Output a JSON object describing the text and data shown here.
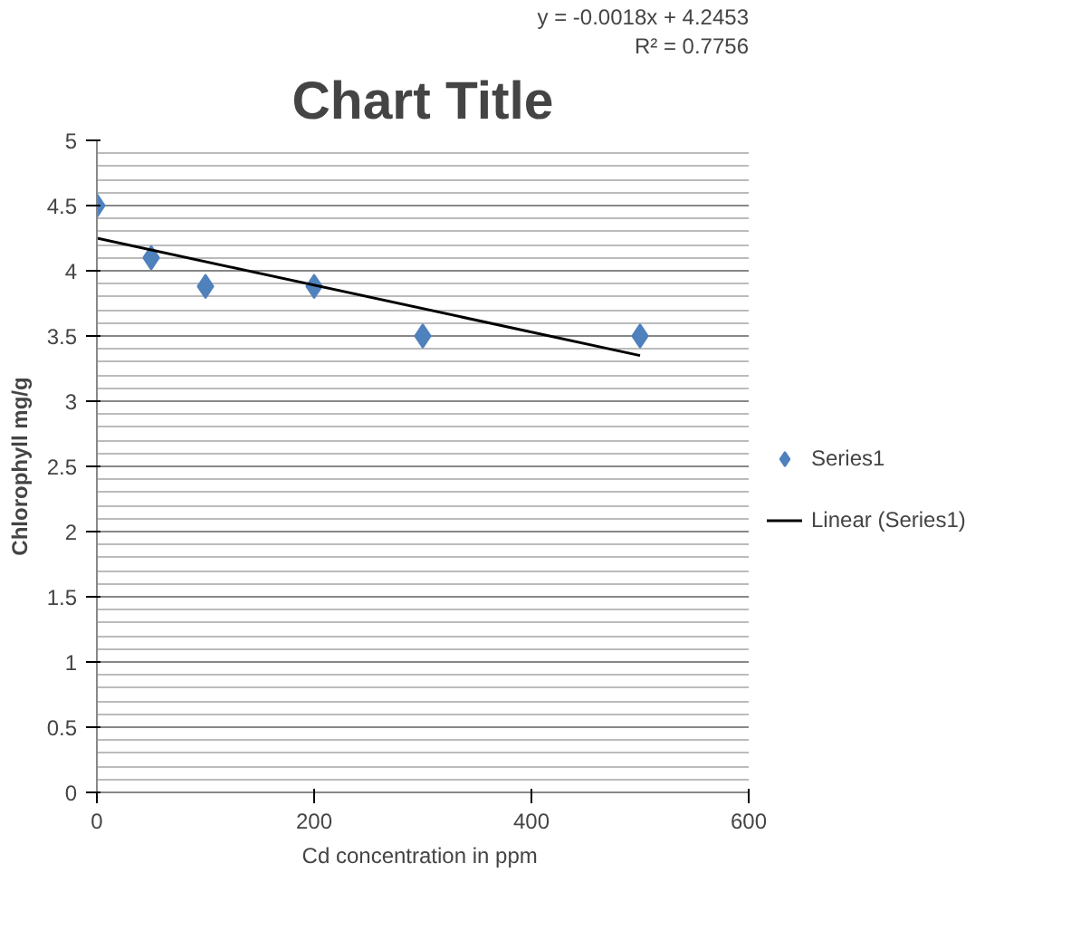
{
  "chart_data": {
    "type": "scatter",
    "title": "Chart Title",
    "xlabel": "Cd concentration  in ppm",
    "ylabel": "Chlorophyll mg/g",
    "annotations": [
      "y = -0.0018x + 4.2453",
      "R² = 0.7756"
    ],
    "series": [
      {
        "name": "Series1",
        "color": "#4f81bd",
        "marker": "diamond",
        "x": [
          0,
          50,
          100,
          200,
          300,
          500
        ],
        "values": [
          4.5,
          4.1,
          3.88,
          3.88,
          3.5,
          3.5
        ]
      },
      {
        "name": "Linear (Series1)",
        "type": "line",
        "color": "#000000",
        "marker": "none",
        "x": [
          0,
          500
        ],
        "values": [
          4.25,
          3.35
        ]
      }
    ],
    "xlim": [
      0,
      600
    ],
    "xticks": [
      0,
      200,
      400,
      600
    ],
    "ylim": [
      0,
      5
    ],
    "yticks": [
      0,
      0.5,
      1,
      1.5,
      2,
      2.5,
      3,
      3.5,
      4,
      4.5,
      5
    ],
    "grid": "y",
    "legend": "right"
  }
}
